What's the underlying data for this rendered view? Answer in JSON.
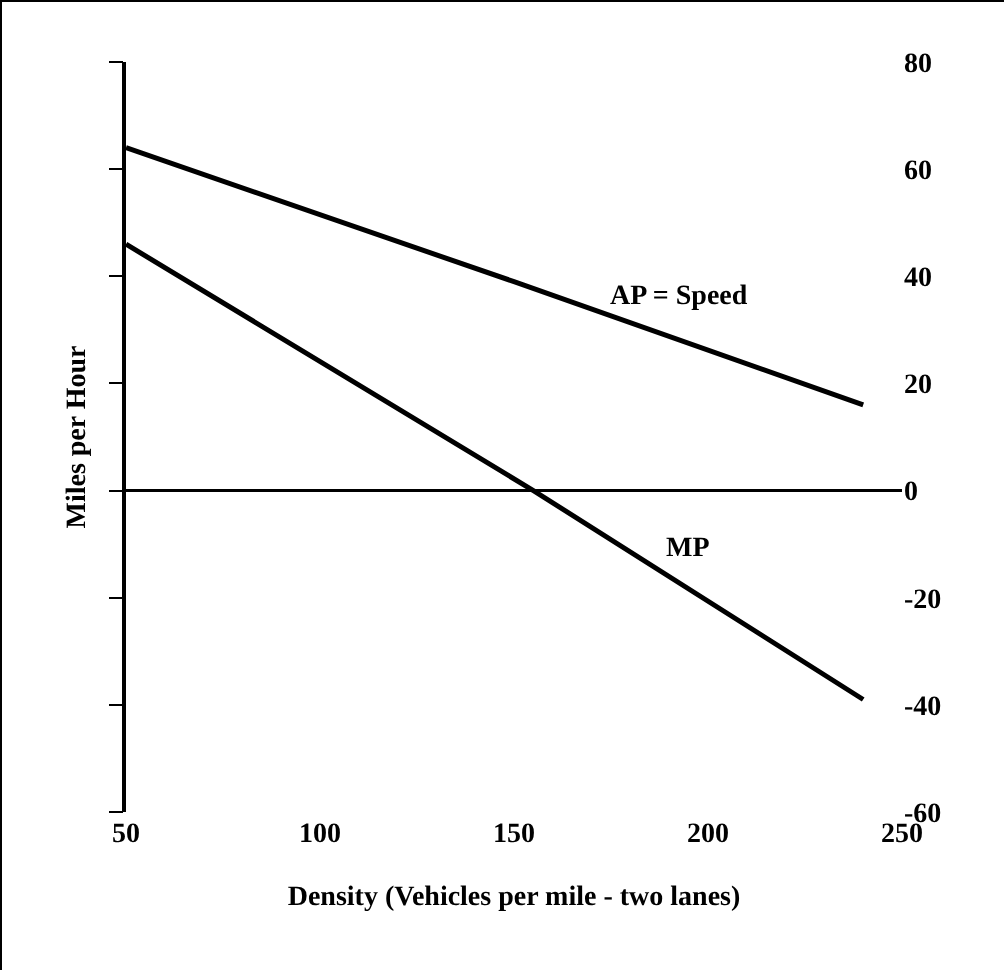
{
  "chart_data": {
    "type": "line",
    "xlabel": "Density (Vehicles per mile - two lanes)",
    "ylabel": "Miles per Hour",
    "series": [
      {
        "name": "AP = Speed",
        "color": "#000000",
        "x": [
          50,
          150,
          240
        ],
        "values": [
          64,
          39,
          16
        ]
      },
      {
        "name": "MP",
        "color": "#000000",
        "x": [
          50,
          155,
          240
        ],
        "values": [
          46,
          0,
          -39
        ]
      }
    ],
    "ref_lines": [
      {
        "axis": "y",
        "value": 0,
        "color": "#000000",
        "line_style": "solid"
      }
    ],
    "xlim": [
      50,
      250
    ],
    "xticks": [
      50,
      100,
      150,
      200,
      250
    ],
    "ylim": [
      -60,
      80
    ],
    "yticks": [
      -60,
      -40,
      -20,
      0,
      20,
      40,
      60,
      80
    ],
    "grid": false,
    "legend": false,
    "marker": "none",
    "line_style": "solid"
  }
}
